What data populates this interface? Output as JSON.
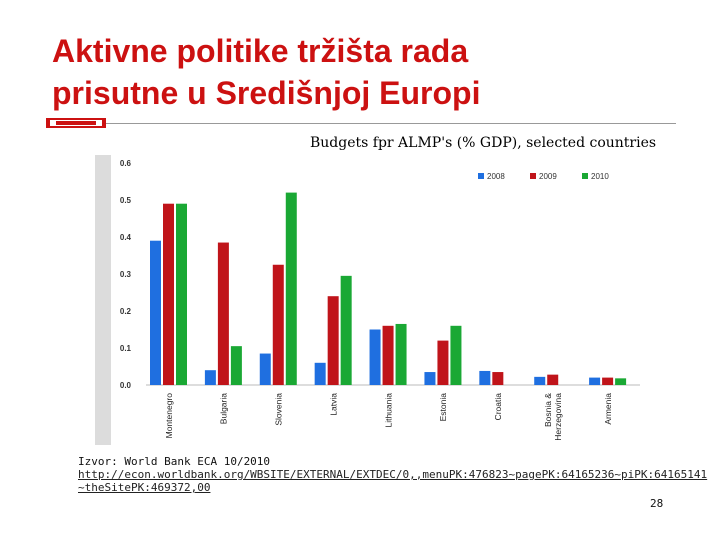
{
  "slide": {
    "title_line1": "Aktivne politike tržišta rada",
    "title_line2": "prisutne u Središnjoj Europi",
    "source_label": "Izvor: World Bank ECA 10/2010",
    "source_url": "http://econ.worldbank.org/WBSITE/EXTERNAL/EXTDEC/0,,menuPK:476823~pagePK:64165236~piPK:64165141~theSitePK:469372,00",
    "page_number": "28"
  },
  "colors": {
    "title": "#cc1111",
    "s2008": "#1f6fe0",
    "s2009": "#c0141a",
    "s2010": "#1aa834"
  },
  "chart_data": {
    "type": "bar",
    "title": "Budgets fpr ALMP's (% GDP), selected countries",
    "xlabel": "",
    "ylabel": "",
    "ylim": [
      0,
      0.6
    ],
    "yticks": [
      "0.0",
      "0.1",
      "0.2",
      "0.3",
      "0.4",
      "0.5",
      "0.6"
    ],
    "legend_position": "top-right",
    "categories": [
      "Montenegro",
      "Bulgaria",
      "Slovenia",
      "Latvia",
      "Lithuania",
      "Estonia",
      "Croatia",
      "Bosnia & Herzegovina",
      "Armenia"
    ],
    "series": [
      {
        "name": "2008",
        "values": [
          0.39,
          0.04,
          0.085,
          0.06,
          0.15,
          0.035,
          0.038,
          0.022,
          0.02
        ]
      },
      {
        "name": "2009",
        "values": [
          0.49,
          0.385,
          0.325,
          0.24,
          0.16,
          0.12,
          0.035,
          0.028,
          0.02
        ]
      },
      {
        "name": "2010",
        "values": [
          0.49,
          0.105,
          0.52,
          0.295,
          0.165,
          0.16,
          0,
          0,
          0.018
        ]
      }
    ]
  }
}
